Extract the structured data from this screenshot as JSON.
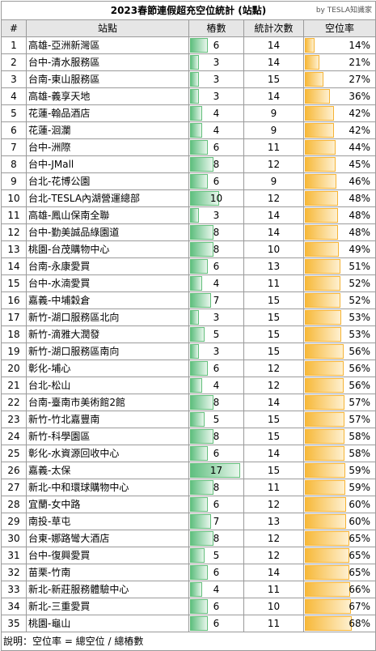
{
  "title": "2023春節連假超充空位統計 (站點)",
  "credit": "by TESLA知識家",
  "headers": [
    "#",
    "站點",
    "樁數",
    "統計次數",
    "空位率"
  ],
  "note": "說明：空位率 = 總空位 / 總樁數",
  "colors": {
    "stalls_bar": "#63be7b",
    "rate_bar": "#f5b335",
    "header_bg": "#e6e6e6",
    "grid": "#9a9a9a"
  },
  "chart_data": {
    "type": "table",
    "stalls_max": 17,
    "rate_max": 68,
    "rows": [
      {
        "idx": "1",
        "station": "高雄-亞洲新灣區",
        "stalls": 6,
        "count": 14,
        "rate": 14
      },
      {
        "idx": "2",
        "station": "台中-清水服務區",
        "stalls": 3,
        "count": 14,
        "rate": 21
      },
      {
        "idx": "3",
        "station": "台南-東山服務區",
        "stalls": 3,
        "count": 15,
        "rate": 27
      },
      {
        "idx": "4",
        "station": "高雄-義享天地",
        "stalls": 3,
        "count": 14,
        "rate": 36
      },
      {
        "idx": "5",
        "station": "花蓮-翰品酒店",
        "stalls": 4,
        "count": 9,
        "rate": 42
      },
      {
        "idx": "6",
        "station": "花蓮-洄瀾",
        "stalls": 4,
        "count": 9,
        "rate": 42
      },
      {
        "idx": "7",
        "station": "台中-洲際",
        "stalls": 6,
        "count": 11,
        "rate": 44
      },
      {
        "idx": "8",
        "station": "台中-JMall",
        "stalls": 8,
        "count": 12,
        "rate": 45
      },
      {
        "idx": "9",
        "station": "台北-花博公園",
        "stalls": 6,
        "count": 9,
        "rate": 46
      },
      {
        "idx": "10",
        "station": "台北-TESLA內湖營運總部",
        "stalls": 10,
        "count": 12,
        "rate": 48
      },
      {
        "idx": "11",
        "station": "高雄-鳳山保南全聯",
        "stalls": 3,
        "count": 14,
        "rate": 48
      },
      {
        "idx": "12",
        "station": "台中-勤美誠品綠園道",
        "stalls": 8,
        "count": 14,
        "rate": 48
      },
      {
        "idx": "13",
        "station": "桃園-台茂購物中心",
        "stalls": 8,
        "count": 10,
        "rate": 49
      },
      {
        "idx": "14",
        "station": "台南-永康愛買",
        "stalls": 6,
        "count": 13,
        "rate": 51
      },
      {
        "idx": "15",
        "station": "台中-水湳愛買",
        "stalls": 4,
        "count": 11,
        "rate": 52
      },
      {
        "idx": "16",
        "station": "嘉義-中埔穀倉",
        "stalls": 7,
        "count": 15,
        "rate": 52
      },
      {
        "idx": "17",
        "station": "新竹-湖口服務區北向",
        "stalls": 3,
        "count": 15,
        "rate": 53
      },
      {
        "idx": "18",
        "station": "新竹-滴雅大潤發",
        "stalls": 5,
        "count": 15,
        "rate": 53
      },
      {
        "idx": "19",
        "station": "新竹-湖口服務區南向",
        "stalls": 3,
        "count": 15,
        "rate": 56
      },
      {
        "idx": "20",
        "station": "彰化-埔心",
        "stalls": 6,
        "count": 12,
        "rate": 56
      },
      {
        "idx": "21",
        "station": "台北-松山",
        "stalls": 4,
        "count": 12,
        "rate": 56
      },
      {
        "idx": "22",
        "station": "台南-臺南市美術館2館",
        "stalls": 8,
        "count": 14,
        "rate": 57
      },
      {
        "idx": "23",
        "station": "新竹-竹北嘉豐南",
        "stalls": 5,
        "count": 15,
        "rate": 57
      },
      {
        "idx": "24",
        "station": "新竹-科學園區",
        "stalls": 8,
        "count": 15,
        "rate": 58
      },
      {
        "idx": "25",
        "station": "彰化-水資源回收中心",
        "stalls": 6,
        "count": 14,
        "rate": 58
      },
      {
        "idx": "26",
        "station": "嘉義-太保",
        "stalls": 17,
        "count": 15,
        "rate": 59
      },
      {
        "idx": "27",
        "station": "新北-中和環球購物中心",
        "stalls": 8,
        "count": 11,
        "rate": 59
      },
      {
        "idx": "28",
        "station": "宜蘭-女中路",
        "stalls": 6,
        "count": 12,
        "rate": 60
      },
      {
        "idx": "29",
        "station": "南投-草屯",
        "stalls": 7,
        "count": 13,
        "rate": 60
      },
      {
        "idx": "30",
        "station": "台東-娜路彎大酒店",
        "stalls": 8,
        "count": 12,
        "rate": 65
      },
      {
        "idx": "31",
        "station": "台中-復興愛買",
        "stalls": 5,
        "count": 12,
        "rate": 65
      },
      {
        "idx": "32",
        "station": "苗栗-竹南",
        "stalls": 6,
        "count": 14,
        "rate": 65
      },
      {
        "idx": "33",
        "station": "新北-新莊服務體驗中心",
        "stalls": 4,
        "count": 11,
        "rate": 66
      },
      {
        "idx": "34",
        "station": "新北-三重愛買",
        "stalls": 6,
        "count": 10,
        "rate": 67
      },
      {
        "idx": "35",
        "station": "桃園-龜山",
        "stalls": 6,
        "count": 11,
        "rate": 68
      }
    ]
  }
}
